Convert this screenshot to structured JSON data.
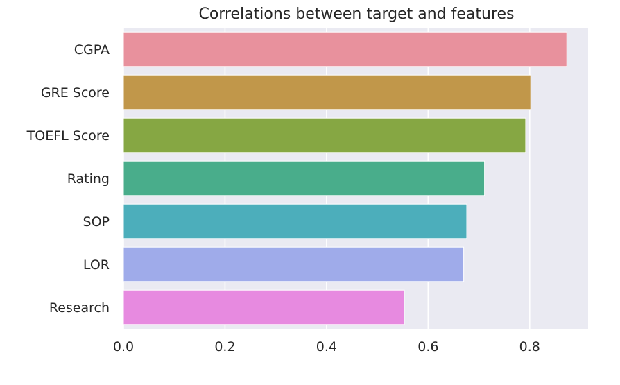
{
  "chart_data": {
    "type": "bar",
    "orientation": "horizontal",
    "title": "Correlations between target and features",
    "xlabel": "",
    "ylabel": "",
    "categories": [
      "CGPA",
      "GRE Score",
      "TOEFL Score",
      "Rating",
      "SOP",
      "LOR",
      "Research"
    ],
    "values": [
      0.873,
      0.802,
      0.792,
      0.711,
      0.676,
      0.67,
      0.553
    ],
    "colors": [
      "#e8919d",
      "#c1974a",
      "#86a743",
      "#49ad8b",
      "#4caebb",
      "#9fabea",
      "#e78ae0"
    ],
    "xlim": [
      0,
      0.915
    ],
    "xticks": [
      0.0,
      0.2,
      0.4,
      0.6,
      0.8
    ],
    "xtick_labels": [
      "0.0",
      "0.2",
      "0.4",
      "0.6",
      "0.8"
    ],
    "grid": true,
    "background": "#eaeaf2",
    "gridline_color": "#ffffff"
  }
}
